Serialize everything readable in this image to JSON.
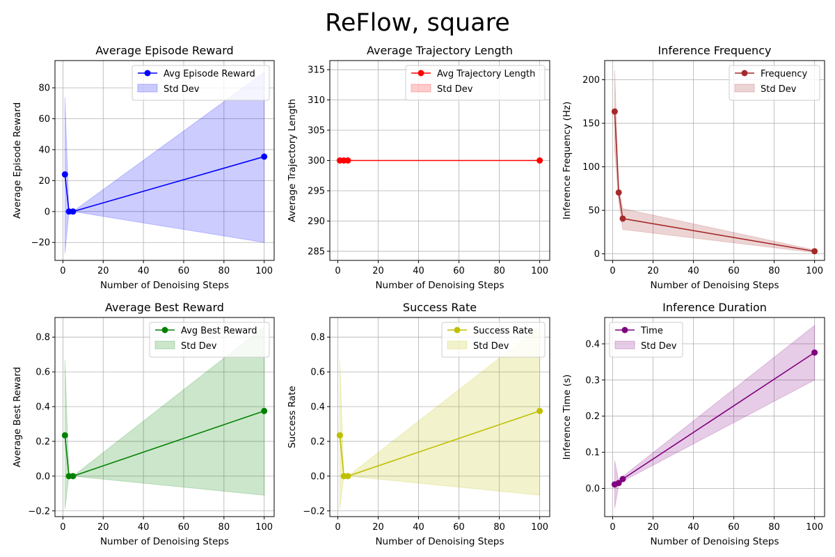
{
  "figure": {
    "title": "ReFlow, square"
  },
  "chart_data": [
    {
      "type": "line",
      "title": "Average Episode Reward",
      "xlabel": "Number of Denoising Steps",
      "ylabel": "Average Episode Reward",
      "xlim": [
        -3.95,
        104.95
      ],
      "ylim": [
        -31.6,
        97.6
      ],
      "xticks": [
        0,
        20,
        40,
        60,
        80,
        100
      ],
      "yticks": [
        -20,
        0,
        20,
        40,
        60,
        80
      ],
      "grid": true,
      "legend_position": "upper right",
      "color": "#0000ff",
      "series": [
        {
          "name": "Avg Episode Reward",
          "x": [
            1,
            3,
            5,
            100
          ],
          "y": [
            24.0,
            0.0,
            0.0,
            35.5
          ]
        },
        {
          "name": "Std Dev",
          "kind": "band",
          "x": [
            1,
            3,
            5,
            100
          ],
          "lower": [
            -27,
            0,
            0,
            -20
          ],
          "upper": [
            74,
            0,
            0,
            90
          ]
        }
      ]
    },
    {
      "type": "line",
      "title": "Average Trajectory Length",
      "xlabel": "Number of Denoising Steps",
      "ylabel": "Average Trajectory Length",
      "xlim": [
        -3.95,
        104.95
      ],
      "ylim": [
        283.5,
        316.5
      ],
      "xticks": [
        0,
        20,
        40,
        60,
        80,
        100
      ],
      "yticks": [
        285,
        290,
        295,
        300,
        305,
        310,
        315
      ],
      "grid": true,
      "legend_position": "upper right",
      "color": "#ff0000",
      "series": [
        {
          "name": "Avg Trajectory Length",
          "x": [
            1,
            3,
            5,
            100
          ],
          "y": [
            300,
            300,
            300,
            300
          ]
        },
        {
          "name": "Std Dev",
          "kind": "band",
          "x": [
            1,
            3,
            5,
            100
          ],
          "lower": [
            300,
            300,
            300,
            300
          ],
          "upper": [
            300,
            300,
            300,
            300
          ]
        }
      ]
    },
    {
      "type": "line",
      "title": "Inference Frequency",
      "xlabel": "Number of Denoising Steps",
      "ylabel": "Inference Frequency (Hz)",
      "xlim": [
        -3.95,
        104.95
      ],
      "ylim": [
        -7.5,
        222
      ],
      "xticks": [
        0,
        20,
        40,
        60,
        80,
        100
      ],
      "yticks": [
        0,
        50,
        100,
        150,
        200
      ],
      "grid": true,
      "legend_position": "upper right",
      "color": "#a52a2a",
      "series": [
        {
          "name": "Frequency",
          "x": [
            1,
            3,
            5,
            100
          ],
          "y": [
            163.5,
            70.5,
            40.5,
            3.0
          ]
        },
        {
          "name": "Std Dev",
          "kind": "band",
          "x": [
            1,
            3,
            5,
            100
          ],
          "lower": [
            119,
            60,
            28,
            1.5
          ],
          "upper": [
            211,
            75,
            52,
            4.5
          ]
        }
      ]
    },
    {
      "type": "line",
      "title": "Average Best Reward",
      "xlabel": "Number of Denoising Steps",
      "ylabel": "Average Best Reward",
      "xlim": [
        -3.95,
        104.95
      ],
      "ylim": [
        -0.233,
        0.913
      ],
      "xticks": [
        0,
        20,
        40,
        60,
        80,
        100
      ],
      "yticks": [
        -0.2,
        0.0,
        0.2,
        0.4,
        0.6,
        0.8
      ],
      "grid": true,
      "legend_position": "upper right",
      "color": "#008000",
      "series": [
        {
          "name": "Avg Best Reward",
          "x": [
            1,
            3,
            5,
            100
          ],
          "y": [
            0.235,
            0.0,
            0.0,
            0.375
          ]
        },
        {
          "name": "Std Dev",
          "kind": "band",
          "x": [
            1,
            3,
            5,
            100
          ],
          "lower": [
            -0.19,
            0,
            0,
            -0.11
          ],
          "upper": [
            0.67,
            0,
            0,
            0.86
          ]
        }
      ]
    },
    {
      "type": "line",
      "title": "Success Rate",
      "xlabel": "Number of Denoising Steps",
      "ylabel": "Success Rate",
      "xlim": [
        -3.95,
        104.95
      ],
      "ylim": [
        -0.233,
        0.913
      ],
      "xticks": [
        0,
        20,
        40,
        60,
        80,
        100
      ],
      "yticks": [
        -0.2,
        0.0,
        0.2,
        0.4,
        0.6,
        0.8
      ],
      "grid": true,
      "legend_position": "upper right",
      "color": "#bfbf00",
      "series": [
        {
          "name": "Success Rate",
          "x": [
            1,
            3,
            5,
            100
          ],
          "y": [
            0.235,
            0.0,
            0.0,
            0.375
          ]
        },
        {
          "name": "Std Dev",
          "kind": "band",
          "x": [
            1,
            3,
            5,
            100
          ],
          "lower": [
            -0.19,
            0,
            0,
            -0.11
          ],
          "upper": [
            0.67,
            0,
            0,
            0.86
          ]
        }
      ]
    },
    {
      "type": "line",
      "title": "Inference Duration",
      "xlabel": "Number of Denoising Steps",
      "ylabel": "Inference Time (s)",
      "xlim": [
        -3.95,
        104.95
      ],
      "ylim": [
        -0.078,
        0.473
      ],
      "xticks": [
        0,
        20,
        40,
        60,
        80,
        100
      ],
      "yticks": [
        0.0,
        0.1,
        0.2,
        0.3,
        0.4
      ],
      "grid": true,
      "legend_position": "upper left",
      "color": "#800080",
      "series": [
        {
          "name": "Time",
          "x": [
            1,
            3,
            5,
            100
          ],
          "y": [
            0.011,
            0.015,
            0.026,
            0.376
          ]
        },
        {
          "name": "Std Dev",
          "kind": "band",
          "x": [
            1,
            3,
            5,
            100
          ],
          "lower": [
            -0.055,
            0.01,
            0.02,
            0.3
          ],
          "upper": [
            0.077,
            0.02,
            0.033,
            0.451
          ]
        }
      ]
    }
  ]
}
